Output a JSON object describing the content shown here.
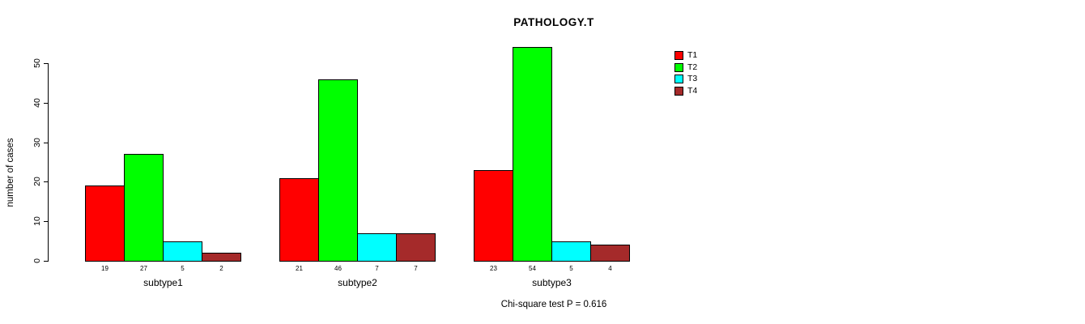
{
  "title": "PATHOLOGY.T",
  "ylabel": "number of cases",
  "footer": "Chi-square test P = 0.616",
  "legend": {
    "position": "top-right",
    "items": [
      {
        "label": "T1",
        "color": "#FF0000"
      },
      {
        "label": "T2",
        "color": "#00FF00"
      },
      {
        "label": "T3",
        "color": "#00FFFF"
      },
      {
        "label": "T4",
        "color": "#A52A2A"
      }
    ]
  },
  "chart_data": {
    "type": "bar",
    "grouped": true,
    "title": "PATHOLOGY.T",
    "ylabel": "number of cases",
    "xlabel": "",
    "categories": [
      "subtype1",
      "subtype2",
      "subtype3"
    ],
    "series": [
      {
        "name": "T1",
        "color": "#FF0000",
        "values": [
          19,
          21,
          23
        ]
      },
      {
        "name": "T2",
        "color": "#00FF00",
        "values": [
          27,
          46,
          54
        ]
      },
      {
        "name": "T3",
        "color": "#00FFFF",
        "values": [
          5,
          7,
          5
        ]
      },
      {
        "name": "T4",
        "color": "#A52A2A",
        "values": [
          2,
          7,
          4
        ]
      }
    ],
    "yticks": [
      0,
      10,
      20,
      30,
      40,
      50
    ],
    "ylim": [
      0,
      50
    ],
    "grid": false,
    "bar_value_labels": true,
    "legend_position": "top-right",
    "annotation": "Chi-square test P = 0.616"
  }
}
